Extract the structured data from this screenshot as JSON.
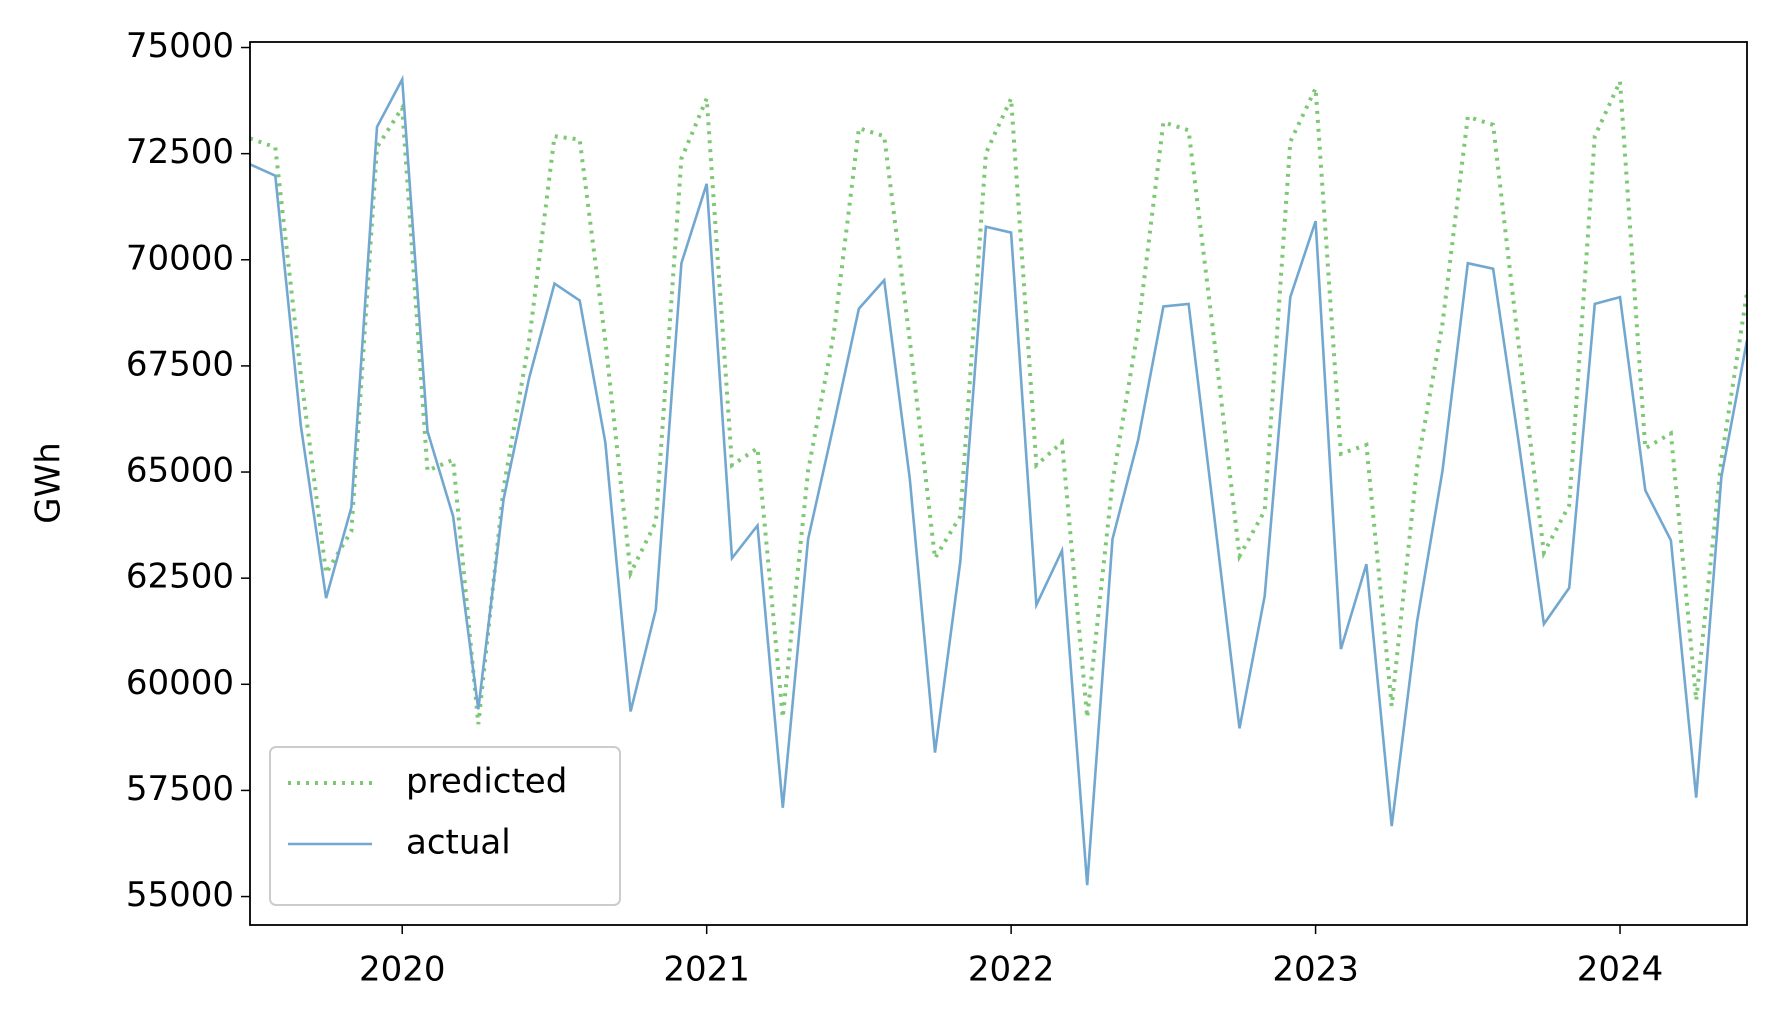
{
  "chart_data": {
    "type": "line",
    "y_label": "GWh",
    "x": [
      2019.5,
      2019.583,
      2019.667,
      2019.75,
      2019.833,
      2019.917,
      2020.0,
      2020.083,
      2020.167,
      2020.25,
      2020.333,
      2020.417,
      2020.5,
      2020.583,
      2020.667,
      2020.75,
      2020.833,
      2020.917,
      2021.0,
      2021.083,
      2021.167,
      2021.25,
      2021.333,
      2021.417,
      2021.5,
      2021.583,
      2021.667,
      2021.75,
      2021.833,
      2021.917,
      2022.0,
      2022.083,
      2022.167,
      2022.25,
      2022.333,
      2022.417,
      2022.5,
      2022.583,
      2022.667,
      2022.75,
      2022.833,
      2022.917,
      2023.0,
      2023.083,
      2023.167,
      2023.25,
      2023.333,
      2023.417,
      2023.5,
      2023.583,
      2023.667,
      2023.75,
      2023.833,
      2023.917,
      2024.0,
      2024.083,
      2024.167,
      2024.25,
      2024.333,
      2024.417
    ],
    "series": [
      {
        "name": "predicted",
        "color": "#7dc874",
        "linestyle": "dotted",
        "values": [
          72860,
          72650,
          67300,
          62620,
          63610,
          72650,
          73580,
          65030,
          65290,
          59060,
          64630,
          68100,
          72910,
          72830,
          68100,
          62620,
          63820,
          72380,
          73800,
          65160,
          65560,
          59220,
          65030,
          68230,
          73100,
          72910,
          68100,
          62970,
          63960,
          72510,
          73800,
          65160,
          65700,
          59220,
          64760,
          68370,
          73240,
          73050,
          68100,
          63020,
          64090,
          72780,
          74040,
          65430,
          65640,
          59490,
          65110,
          68500,
          73370,
          73180,
          67970,
          63100,
          64220,
          72910,
          74200,
          65560,
          65910,
          59620,
          65290,
          69230
        ]
      },
      {
        "name": "actual",
        "color": "#72a8d0",
        "linestyle": "solid",
        "values": [
          72250,
          71980,
          66100,
          62030,
          64170,
          73130,
          74250,
          65960,
          63960,
          59410,
          64360,
          67220,
          69440,
          69040,
          65700,
          59360,
          61760,
          69920,
          71790,
          62970,
          63740,
          57090,
          63420,
          66100,
          68850,
          69520,
          64840,
          58390,
          62890,
          70780,
          70640,
          61870,
          63150,
          55270,
          63420,
          65750,
          68900,
          68960,
          63960,
          58960,
          62080,
          69120,
          70910,
          60830,
          62830,
          56660,
          61470,
          65030,
          69920,
          69790,
          65700,
          61420,
          62270,
          68960,
          69120,
          64570,
          63390,
          57330,
          64890,
          68100
        ]
      }
    ],
    "xlim": [
      2019.5,
      2024.417
    ],
    "xticks": [
      2020,
      2021,
      2022,
      2023,
      2024
    ],
    "ylim": [
      54330,
      75130
    ],
    "yticks": [
      55000,
      57500,
      60000,
      62500,
      65000,
      67500,
      70000,
      72500,
      75000
    ],
    "grid": false,
    "legend": "lower left"
  }
}
